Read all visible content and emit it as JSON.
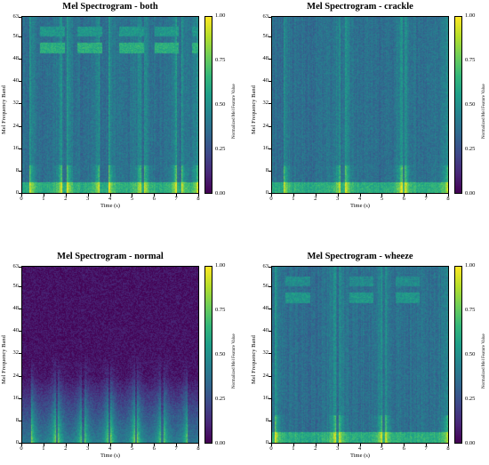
{
  "chart_data": [
    {
      "type": "heatmap",
      "title": "Mel Spectrogram - both",
      "xlabel": "Time (s)",
      "ylabel": "Mel Frequency Band",
      "xlim": [
        0,
        8
      ],
      "ylim": [
        0,
        63
      ],
      "x_ticks": [
        "0",
        "1",
        "2",
        "3",
        "4",
        "5",
        "6",
        "7",
        "8"
      ],
      "y_ticks": [
        "0",
        "8",
        "16",
        "24",
        "32",
        "40",
        "48",
        "56",
        "63"
      ],
      "colorbar": {
        "label": "Normalized Mel Feature Value",
        "range": [
          0,
          1
        ],
        "ticks": [
          "0.00",
          "0.25",
          "0.50",
          "0.75",
          "1.00"
        ],
        "colormap": "viridis"
      },
      "breaths": [
        [
          0.3,
          1.8
        ],
        [
          2.0,
          3.5
        ],
        [
          3.9,
          5.4
        ],
        [
          5.5,
          7.0
        ],
        [
          7.2,
          8.0
        ]
      ],
      "bands": [
        {
          "band": 52,
          "value": 0.6
        },
        {
          "band": 58,
          "value": 0.5
        }
      ]
    },
    {
      "type": "heatmap",
      "title": "Mel Spectrogram - crackle",
      "xlabel": "Time (s)",
      "ylabel": "Mel Frequency Band",
      "xlim": [
        0,
        8
      ],
      "ylim": [
        0,
        63
      ],
      "x_ticks": [
        "0",
        "1",
        "2",
        "3",
        "4",
        "5",
        "6",
        "7",
        "8"
      ],
      "y_ticks": [
        "0",
        "8",
        "16",
        "24",
        "32",
        "40",
        "48",
        "56",
        "63"
      ],
      "colorbar": {
        "label": "Normalized Mel Feature Value",
        "range": [
          0,
          1
        ],
        "ticks": [
          "0.00",
          "0.25",
          "0.50",
          "0.75",
          "1.00"
        ],
        "colormap": "viridis"
      },
      "breaths": [
        [
          0.5,
          3.1
        ],
        [
          3.3,
          5.9
        ],
        [
          6.0,
          8.0
        ]
      ],
      "bands": []
    },
    {
      "type": "heatmap",
      "title": "Mel Spectrogram - normal",
      "xlabel": "Time (s)",
      "ylabel": "Mel Frequency Band",
      "xlim": [
        0,
        8
      ],
      "ylim": [
        0,
        63
      ],
      "x_ticks": [
        "0",
        "1",
        "2",
        "3",
        "4",
        "5",
        "6",
        "7",
        "8"
      ],
      "y_ticks": [
        "0",
        "8",
        "16",
        "24",
        "32",
        "40",
        "48",
        "56",
        "63"
      ],
      "colorbar": {
        "label": "Normalized Mel Feature Value",
        "range": [
          0,
          1
        ],
        "ticks": [
          "0.00",
          "0.25",
          "0.50",
          "0.75",
          "1.00"
        ],
        "colormap": "viridis"
      },
      "breaths": [
        [
          0.4,
          1.5
        ],
        [
          1.6,
          2.7
        ],
        [
          2.8,
          3.9
        ],
        [
          4.0,
          5.1
        ],
        [
          5.2,
          6.3
        ],
        [
          6.4,
          7.5
        ]
      ],
      "bands": []
    },
    {
      "type": "heatmap",
      "title": "Mel Spectrogram - wheeze",
      "xlabel": "Time (s)",
      "ylabel": "Mel Frequency Band",
      "xlim": [
        0,
        8
      ],
      "ylim": [
        0,
        63
      ],
      "x_ticks": [
        "0",
        "1",
        "2",
        "3",
        "4",
        "5",
        "6",
        "7",
        "8"
      ],
      "y_ticks": [
        "0",
        "8",
        "16",
        "24",
        "32",
        "40",
        "48",
        "56",
        "63"
      ],
      "colorbar": {
        "label": "Normalized Mel Feature Value",
        "range": [
          0,
          1
        ],
        "ticks": [
          "0.00",
          "0.25",
          "0.50",
          "0.75",
          "1.00"
        ],
        "colormap": "viridis"
      },
      "breaths": [
        [
          0.1,
          2.9
        ],
        [
          3.0,
          5.0
        ],
        [
          5.1,
          8.0
        ]
      ],
      "bands": [
        {
          "band": 52,
          "value": 0.5
        },
        {
          "band": 58,
          "value": 0.45
        }
      ]
    }
  ]
}
